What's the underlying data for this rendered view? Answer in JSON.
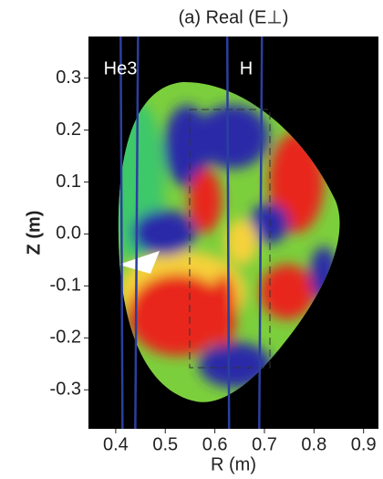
{
  "chart_data": {
    "type": "field-map",
    "title": "(a) Real (E⊥)",
    "xlabel": "R (m)",
    "ylabel": "Z (m)",
    "xlim": [
      0.345,
      0.93
    ],
    "ylim": [
      -0.375,
      0.38
    ],
    "xticks": [
      0.4,
      0.5,
      0.6,
      0.7,
      0.8,
      0.9
    ],
    "yticks": [
      0.3,
      0.2,
      0.1,
      {
        "value": 0,
        "label": "0.0"
      },
      -0.1,
      -0.2,
      -0.3
    ],
    "annotations": [
      "He3",
      "H"
    ],
    "resonance_lines": [
      0.41,
      0.445,
      0.625,
      0.695
    ],
    "line_color": "#2b3f9e",
    "grid": false
  }
}
